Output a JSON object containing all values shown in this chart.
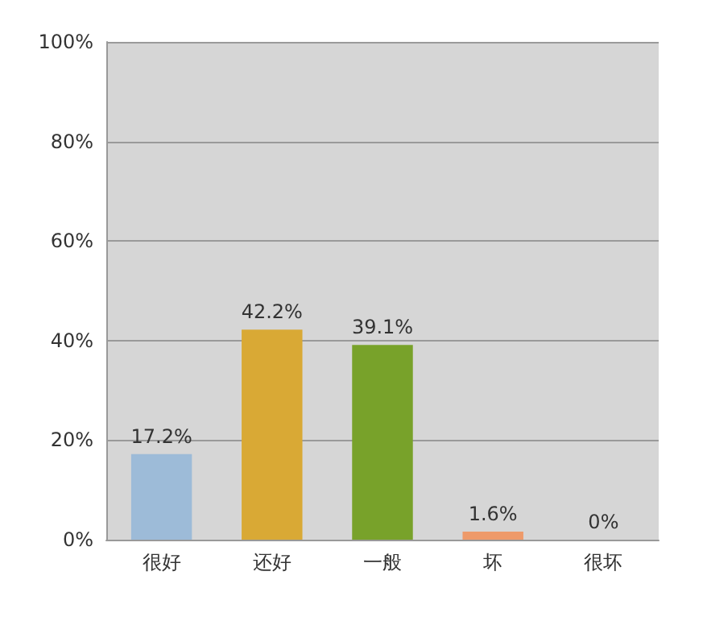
{
  "chart_data": {
    "type": "bar",
    "categories": [
      "很好",
      "还好",
      "一般",
      "坏",
      "很坏"
    ],
    "values": [
      17.2,
      42.2,
      39.1,
      1.6,
      0
    ],
    "colors": [
      "#9dbbd8",
      "#d9a935",
      "#78a22a",
      "#ee9a6a",
      "#3fb0ae"
    ],
    "value_labels": [
      "17.2%",
      "42.2%",
      "39.1%",
      "1.6%",
      "0%"
    ],
    "ylim": [
      0,
      100
    ],
    "yticks": [
      {
        "value": 0,
        "label": "0%"
      },
      {
        "value": 20,
        "label": "20%"
      },
      {
        "value": 40,
        "label": "40%"
      },
      {
        "value": 60,
        "label": "60%"
      },
      {
        "value": 80,
        "label": "80%"
      },
      {
        "value": 100,
        "label": "100%"
      }
    ],
    "grid": "y"
  }
}
